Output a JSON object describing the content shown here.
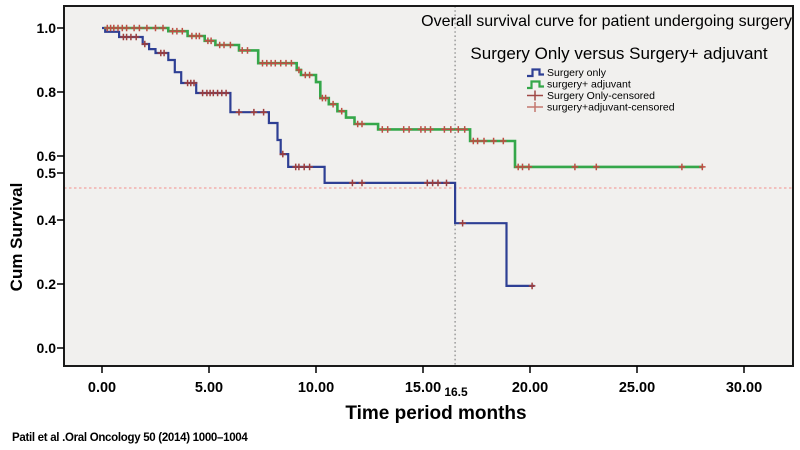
{
  "citation": "Patil et al .Oral Oncology 50 (2014) 1000–1004",
  "colors": {
    "plot_background": "#f1f0ee",
    "plot_border": "#1a1a1a",
    "horizontal_ref_line": "#f2a3a0",
    "vertical_ref_line": "#8f8f8f",
    "text": "#000000"
  },
  "chart_data": {
    "type": "line",
    "variant": "kaplan_meier_step_survival",
    "title": "Overall survival curve for patient undergoing surgery",
    "subtitle": "Surgery Only versus Surgery+ adjuvant",
    "xlabel": "Time period months",
    "ylabel": "Cum Survival",
    "xlim": [
      -1.8,
      32.3
    ],
    "ylim": [
      -0.06,
      1.07
    ],
    "grid": false,
    "legend_position": "upper-right-inside",
    "x_ticks": [
      {
        "label": "0.00",
        "t": 0
      },
      {
        "label": "5.00",
        "t": 5
      },
      {
        "label": "10.00",
        "t": 10
      },
      {
        "label": "15.00",
        "t": 15
      },
      {
        "label": "20.00",
        "t": 20
      },
      {
        "label": "25.00",
        "t": 25
      },
      {
        "label": "30.00",
        "t": 30
      }
    ],
    "median_x_tick": {
      "label": "16.5",
      "t": 16.5
    },
    "y_ticks": [
      {
        "label": "1.0",
        "v": 1.0
      },
      {
        "label": "0.8",
        "v": 0.8
      },
      {
        "label": "0.6",
        "v": 0.6
      },
      {
        "label": "0.5",
        "v": 0.5
      },
      {
        "label": "0.4",
        "v": 0.4
      },
      {
        "label": "0.2",
        "v": 0.2
      },
      {
        "label": "0.0",
        "v": 0.0
      }
    ],
    "reference_lines": {
      "horizontal_value": 0.5,
      "vertical_month": 16.5
    },
    "legend": [
      {
        "label": "Surgery only",
        "marker": "step",
        "color": "#2e3f94"
      },
      {
        "label": "surgery+ adjuvant",
        "marker": "step",
        "color": "#35a74a"
      },
      {
        "label": "Surgery Only-censored",
        "marker": "cross",
        "color": "#a04846"
      },
      {
        "label": "surgery+adjuvant-censored",
        "marker": "cross",
        "color": "#c4776f"
      }
    ],
    "series": [
      {
        "name": "Surgery only",
        "color": "#2e3f94",
        "censor_color": "#9e3e3c",
        "steps": [
          [
            0,
            1.0
          ],
          [
            0.15,
            0.988
          ],
          [
            0.8,
            0.972
          ],
          [
            1.9,
            0.95
          ],
          [
            2.2,
            0.934
          ],
          [
            2.5,
            0.922
          ],
          [
            3.1,
            0.9
          ],
          [
            3.4,
            0.862
          ],
          [
            3.7,
            0.828
          ],
          [
            4.4,
            0.797
          ],
          [
            6.0,
            0.737
          ],
          [
            7.8,
            0.703
          ],
          [
            8.2,
            0.65
          ],
          [
            8.35,
            0.606
          ],
          [
            8.7,
            0.566
          ],
          [
            10.4,
            0.516
          ],
          [
            16.5,
            0.39
          ],
          [
            18.9,
            0.194
          ]
        ],
        "end_t": 20.2,
        "censors": [
          [
            1.0,
            0.972
          ],
          [
            1.15,
            0.972
          ],
          [
            1.35,
            0.972
          ],
          [
            1.6,
            0.972
          ],
          [
            2.0,
            0.95
          ],
          [
            2.75,
            0.922
          ],
          [
            2.9,
            0.922
          ],
          [
            4.0,
            0.828
          ],
          [
            4.15,
            0.828
          ],
          [
            4.3,
            0.828
          ],
          [
            4.7,
            0.797
          ],
          [
            4.9,
            0.797
          ],
          [
            5.05,
            0.797
          ],
          [
            5.2,
            0.797
          ],
          [
            5.4,
            0.797
          ],
          [
            5.6,
            0.797
          ],
          [
            5.8,
            0.797
          ],
          [
            6.4,
            0.737
          ],
          [
            7.1,
            0.737
          ],
          [
            7.55,
            0.737
          ],
          [
            8.45,
            0.606
          ],
          [
            9.05,
            0.566
          ],
          [
            9.2,
            0.566
          ],
          [
            9.45,
            0.566
          ],
          [
            9.7,
            0.566
          ],
          [
            11.7,
            0.516
          ],
          [
            12.15,
            0.516
          ],
          [
            15.2,
            0.516
          ],
          [
            15.45,
            0.516
          ],
          [
            15.7,
            0.516
          ],
          [
            16.1,
            0.516
          ],
          [
            16.85,
            0.39
          ],
          [
            20.1,
            0.194
          ]
        ]
      },
      {
        "name": "surgery+ adjuvant",
        "color": "#35a74a",
        "censor_color": "#bf4e44",
        "steps": [
          [
            0.1,
            1.0
          ],
          [
            3.1,
            0.99
          ],
          [
            4.0,
            0.975
          ],
          [
            4.8,
            0.96
          ],
          [
            5.3,
            0.947
          ],
          [
            6.4,
            0.93
          ],
          [
            7.3,
            0.89
          ],
          [
            9.1,
            0.869
          ],
          [
            9.3,
            0.853
          ],
          [
            10.0,
            0.831
          ],
          [
            10.2,
            0.781
          ],
          [
            10.6,
            0.762
          ],
          [
            11.0,
            0.74
          ],
          [
            11.4,
            0.72
          ],
          [
            11.8,
            0.7
          ],
          [
            12.9,
            0.683
          ],
          [
            17.2,
            0.647
          ],
          [
            19.3,
            0.566
          ]
        ],
        "end_t": 28.1,
        "censors": [
          [
            0.25,
            1.0
          ],
          [
            0.4,
            1.0
          ],
          [
            0.55,
            1.0
          ],
          [
            0.75,
            1.0
          ],
          [
            0.95,
            1.0
          ],
          [
            1.15,
            1.0
          ],
          [
            1.5,
            1.0
          ],
          [
            1.75,
            1.0
          ],
          [
            2.1,
            1.0
          ],
          [
            2.5,
            1.0
          ],
          [
            2.85,
            1.0
          ],
          [
            3.3,
            0.99
          ],
          [
            3.5,
            0.99
          ],
          [
            3.75,
            0.99
          ],
          [
            4.2,
            0.975
          ],
          [
            4.4,
            0.975
          ],
          [
            4.55,
            0.975
          ],
          [
            4.95,
            0.96
          ],
          [
            5.1,
            0.96
          ],
          [
            5.5,
            0.947
          ],
          [
            5.7,
            0.947
          ],
          [
            6.0,
            0.947
          ],
          [
            6.55,
            0.93
          ],
          [
            6.8,
            0.93
          ],
          [
            7.5,
            0.89
          ],
          [
            7.7,
            0.89
          ],
          [
            7.9,
            0.89
          ],
          [
            8.1,
            0.89
          ],
          [
            8.35,
            0.89
          ],
          [
            8.6,
            0.89
          ],
          [
            8.85,
            0.89
          ],
          [
            9.2,
            0.869
          ],
          [
            9.5,
            0.853
          ],
          [
            9.7,
            0.853
          ],
          [
            10.3,
            0.781
          ],
          [
            10.45,
            0.781
          ],
          [
            10.8,
            0.762
          ],
          [
            11.2,
            0.74
          ],
          [
            11.95,
            0.7
          ],
          [
            12.15,
            0.7
          ],
          [
            13.1,
            0.683
          ],
          [
            13.35,
            0.683
          ],
          [
            14.1,
            0.683
          ],
          [
            14.35,
            0.683
          ],
          [
            14.9,
            0.683
          ],
          [
            15.1,
            0.683
          ],
          [
            15.35,
            0.683
          ],
          [
            16.0,
            0.683
          ],
          [
            16.3,
            0.683
          ],
          [
            16.65,
            0.683
          ],
          [
            16.95,
            0.683
          ],
          [
            17.35,
            0.647
          ],
          [
            17.55,
            0.647
          ],
          [
            17.85,
            0.647
          ],
          [
            18.3,
            0.647
          ],
          [
            18.75,
            0.647
          ],
          [
            19.45,
            0.566
          ],
          [
            19.65,
            0.566
          ],
          [
            19.95,
            0.566
          ],
          [
            22.1,
            0.566
          ],
          [
            23.1,
            0.566
          ],
          [
            27.1,
            0.566
          ],
          [
            28.05,
            0.566
          ]
        ]
      }
    ]
  }
}
